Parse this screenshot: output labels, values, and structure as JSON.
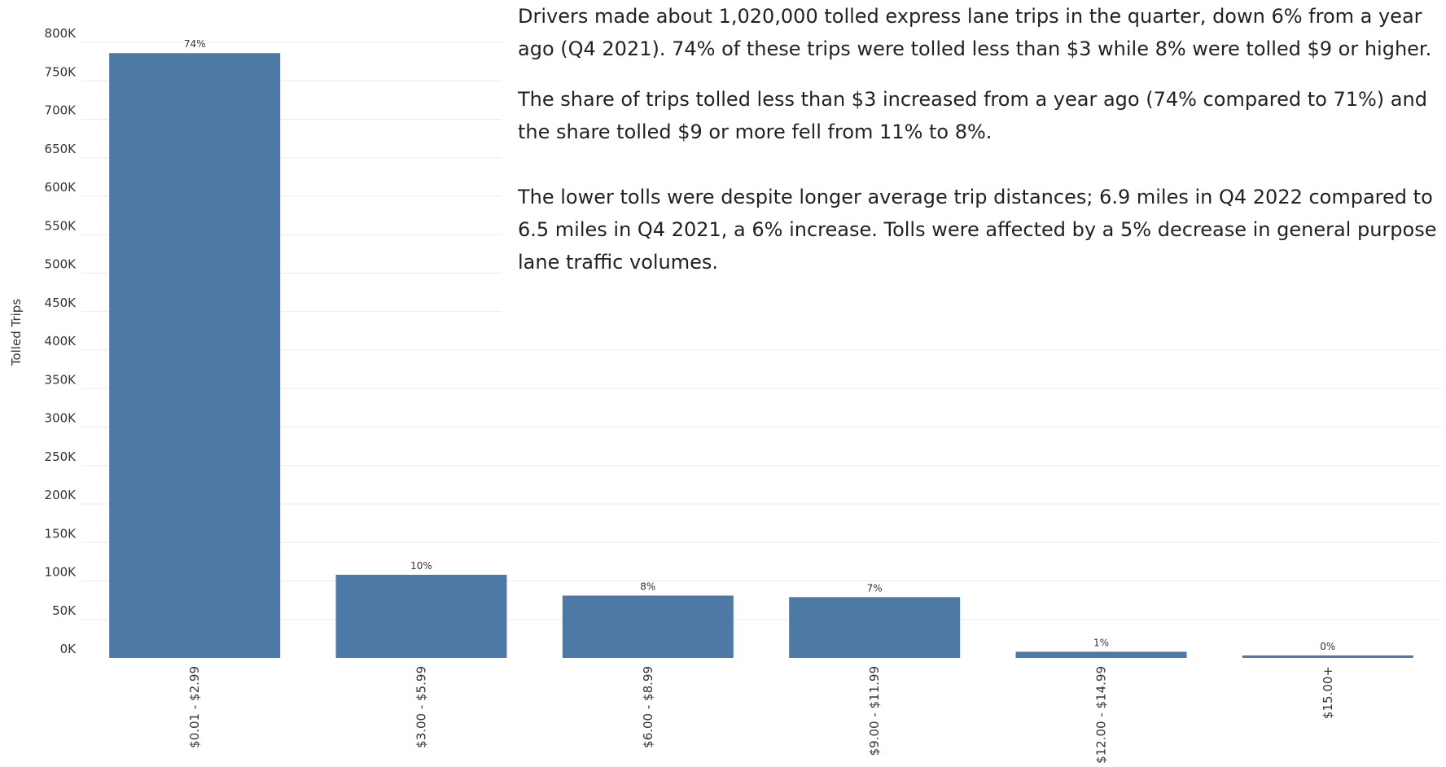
{
  "chart_data": {
    "type": "bar",
    "categories": [
      "$0.01 - $2.99",
      "$3.00 - $5.99",
      "$6.00 - $8.99",
      "$9.00 - $11.99",
      "$12.00 - $14.99",
      "$15.00+"
    ],
    "values": [
      786000,
      108000,
      81000,
      79000,
      8000,
      3000
    ],
    "data_labels": [
      "74%",
      "10%",
      "8%",
      "7%",
      "1%",
      "0%"
    ],
    "ylabel": "Tolled Trips",
    "ylim": [
      0,
      800000
    ],
    "yticks": [
      0,
      50000,
      100000,
      150000,
      200000,
      250000,
      300000,
      350000,
      400000,
      450000,
      500000,
      550000,
      600000,
      650000,
      700000,
      750000,
      800000
    ],
    "ytick_labels": [
      "0K",
      "50K",
      "100K",
      "150K",
      "200K",
      "250K",
      "300K",
      "350K",
      "400K",
      "450K",
      "500K",
      "550K",
      "600K",
      "650K",
      "700K",
      "750K",
      "800K"
    ],
    "grid": true,
    "bar_color": "#4e79a7",
    "grid_color": "#ebebeb"
  },
  "commentary": {
    "p1": "Drivers made about 1,020,000 tolled express lane trips in the quarter, down 6% from a year ago (Q4 2021). 74% of these trips were tolled less than $3 while 8% were tolled $9 or higher.",
    "p2": "The share of trips tolled less than $3 increased from a year ago (74% compared to 71%) and the share tolled $9 or more fell from 11% to 8%.",
    "p3": "The lower tolls were despite longer average trip distances; 6.9 miles in Q4 2022 compared to 6.5 miles in Q4 2021, a 6% increase. Tolls were affected by a 5% decrease in general purpose lane traffic volumes."
  }
}
